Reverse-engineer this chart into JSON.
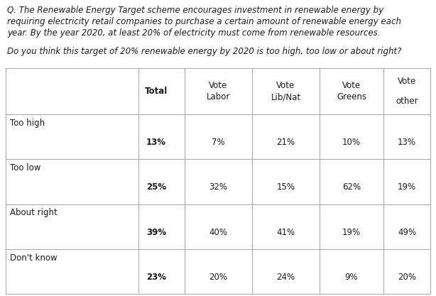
{
  "title_lines": [
    "Q. The Renewable Energy Target scheme encourages investment in renewable energy by",
    "requiring electricity retail companies to purchase a certain amount of renewable energy each",
    "year. By the year 2020, at least 20% of electricity must come from renewable resources."
  ],
  "question": "Do you think this target of 20% renewable energy by 2020 is too high, too low or about right?",
  "col_headers_line1": [
    "",
    "Total",
    "Vote",
    "Vote",
    "Vote",
    "Vote",
    ""
  ],
  "col_headers_line2": [
    "",
    "",
    "Labor",
    "Lib/Nat",
    "Greens",
    "",
    "other"
  ],
  "rows": [
    {
      "label": "Too high",
      "values": [
        "13%",
        "7%",
        "21%",
        "10%",
        "13%"
      ]
    },
    {
      "label": "Too low",
      "values": [
        "25%",
        "32%",
        "15%",
        "62%",
        "19%"
      ]
    },
    {
      "label": "About right",
      "values": [
        "39%",
        "40%",
        "41%",
        "19%",
        "49%"
      ]
    },
    {
      "label": "Don't know",
      "values": [
        "23%",
        "20%",
        "24%",
        "9%",
        "20%"
      ]
    }
  ],
  "bg_color": "#ffffff",
  "text_color": "#1a1a1a",
  "grid_color": "#aaaaaa",
  "figsize": [
    6.14,
    4.17
  ],
  "dpi": 100,
  "title_fontsize": 8.5,
  "table_fontsize": 8.5
}
